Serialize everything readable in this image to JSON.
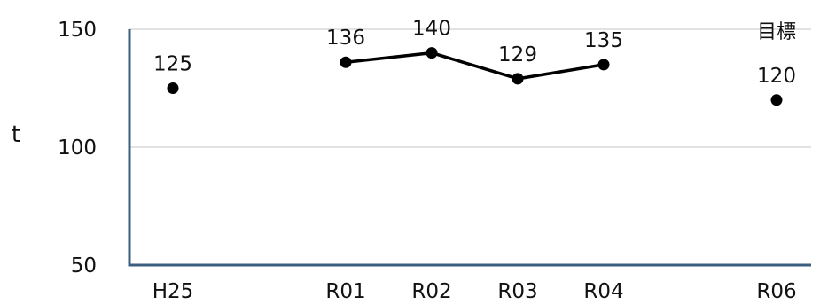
{
  "chart_data": {
    "type": "line",
    "title": "",
    "xlabel": "",
    "ylabel": "t",
    "ylim": [
      50,
      150
    ],
    "yticks": [
      50,
      100,
      150
    ],
    "grid": true,
    "categories": [
      "H25",
      "R01",
      "R02",
      "R03",
      "R04",
      "R06"
    ],
    "values": [
      125,
      136,
      140,
      129,
      135,
      120
    ],
    "data_labels": [
      "125",
      "136",
      "140",
      "129",
      "135",
      "120"
    ],
    "connected_segment": [
      "R01",
      "R02",
      "R03",
      "R04"
    ],
    "annotation": {
      "category": "R06",
      "text": "目標"
    },
    "colors": {
      "line": "#000000",
      "marker": "#000000",
      "axis": "#3b5f7f",
      "grid": "#d9d9d9"
    }
  }
}
